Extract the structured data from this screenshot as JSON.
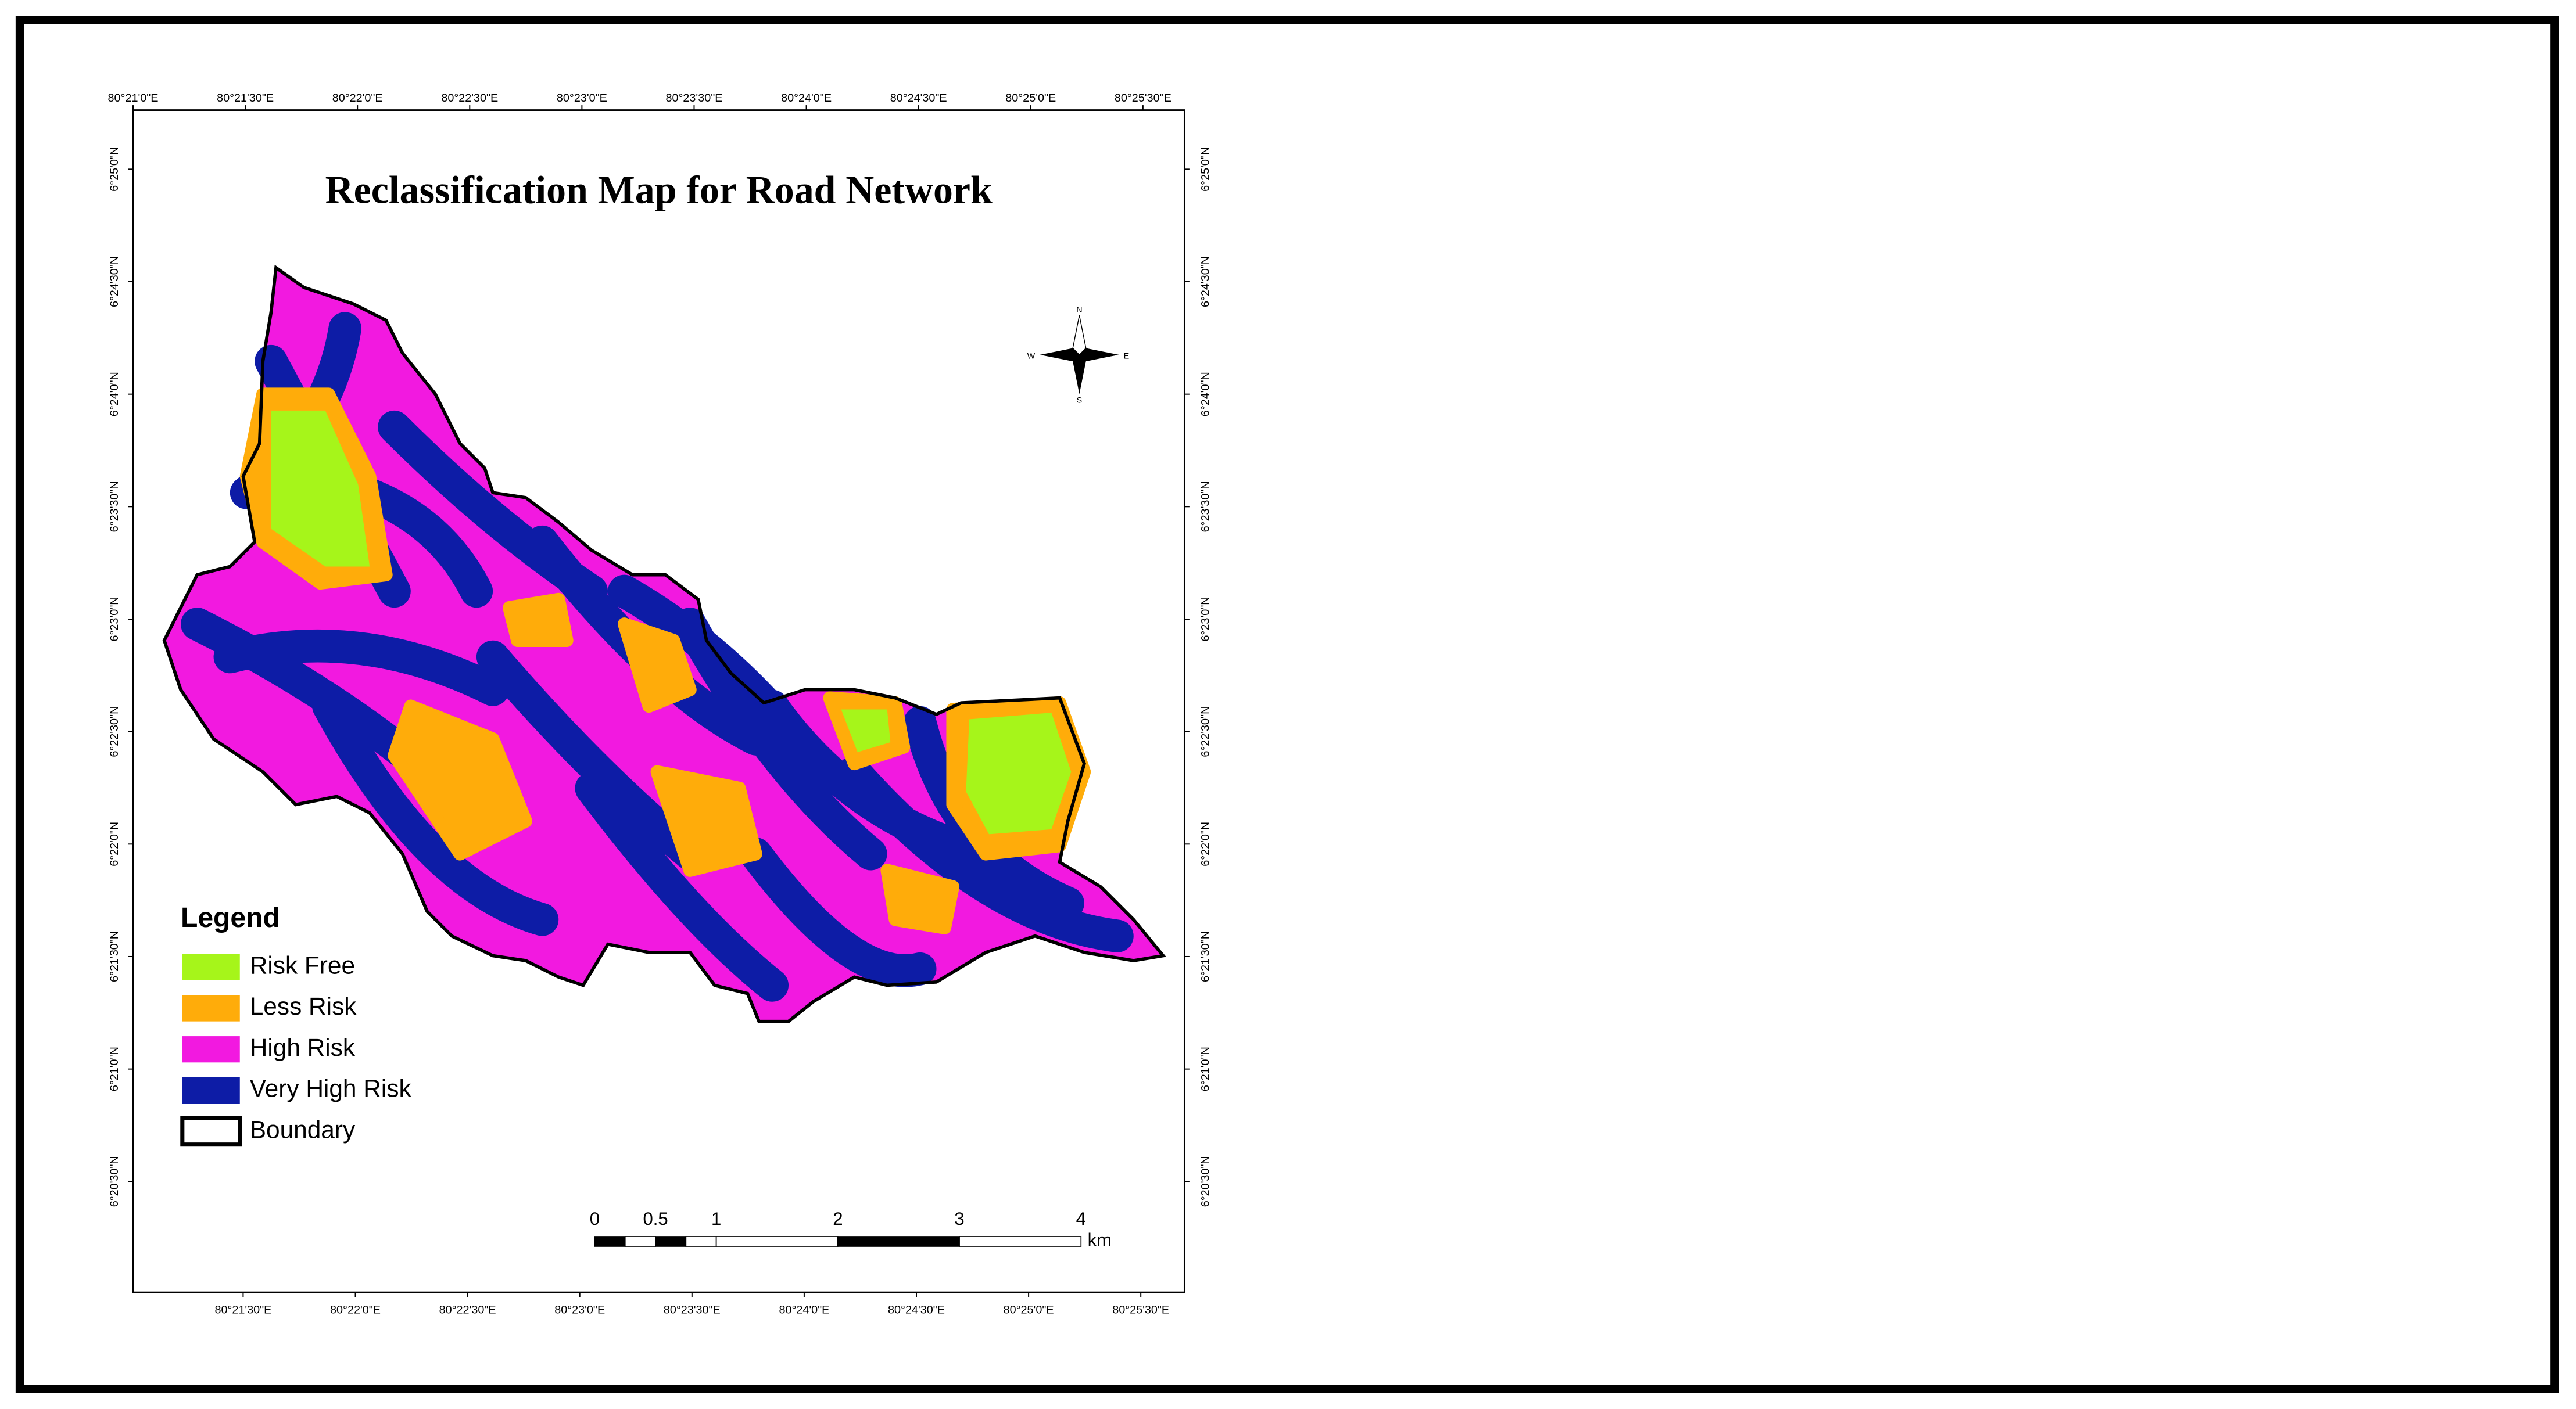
{
  "title": "Reclassification Map for Road Network",
  "graticule": {
    "top": [
      "80°21'0\"E",
      "80°21'30\"E",
      "80°22'0\"E",
      "80°22'30\"E",
      "80°23'0\"E",
      "80°23'30\"E",
      "80°24'0\"E",
      "80°24'30\"E",
      "80°25'0\"E",
      "80°25'30\"E"
    ],
    "bottom": [
      "80°21'30\"E",
      "80°22'0\"E",
      "80°22'30\"E",
      "80°23'0\"E",
      "80°23'30\"E",
      "80°24'0\"E",
      "80°24'30\"E",
      "80°25'0\"E",
      "80°25'30\"E"
    ],
    "left": [
      "6°25'0\"N",
      "6°24'30\"N",
      "6°24'0\"N",
      "6°23'30\"N",
      "6°23'0\"N",
      "6°22'30\"N",
      "6°22'0\"N",
      "6°21'30\"N",
      "6°21'0\"N",
      "6°20'30\"N"
    ],
    "right": [
      "6°25'0\"N",
      "6°24'30\"N",
      "6°24'0\"N",
      "6°23'30\"N",
      "6°23'0\"N",
      "6°22'30\"N",
      "6°22'0\"N",
      "6°21'30\"N",
      "6°21'0\"N",
      "6°20'30\"N"
    ]
  },
  "compass": {
    "north": "N",
    "east": "E",
    "south": "S",
    "west": "W"
  },
  "legend": {
    "title": "Legend",
    "items": [
      {
        "label": "Risk Free",
        "color": "#a6f51a"
      },
      {
        "label": "Less Risk",
        "color": "#ffac0a"
      },
      {
        "label": "High Risk",
        "color": "#f219e0"
      },
      {
        "label": "Very High Risk",
        "color": "#0d1ca6"
      },
      {
        "label": "Boundary",
        "color": "#ffffff"
      }
    ]
  },
  "scale_bar": {
    "ticks": [
      0,
      0.5,
      1,
      2,
      3,
      4
    ],
    "unit": "km"
  }
}
